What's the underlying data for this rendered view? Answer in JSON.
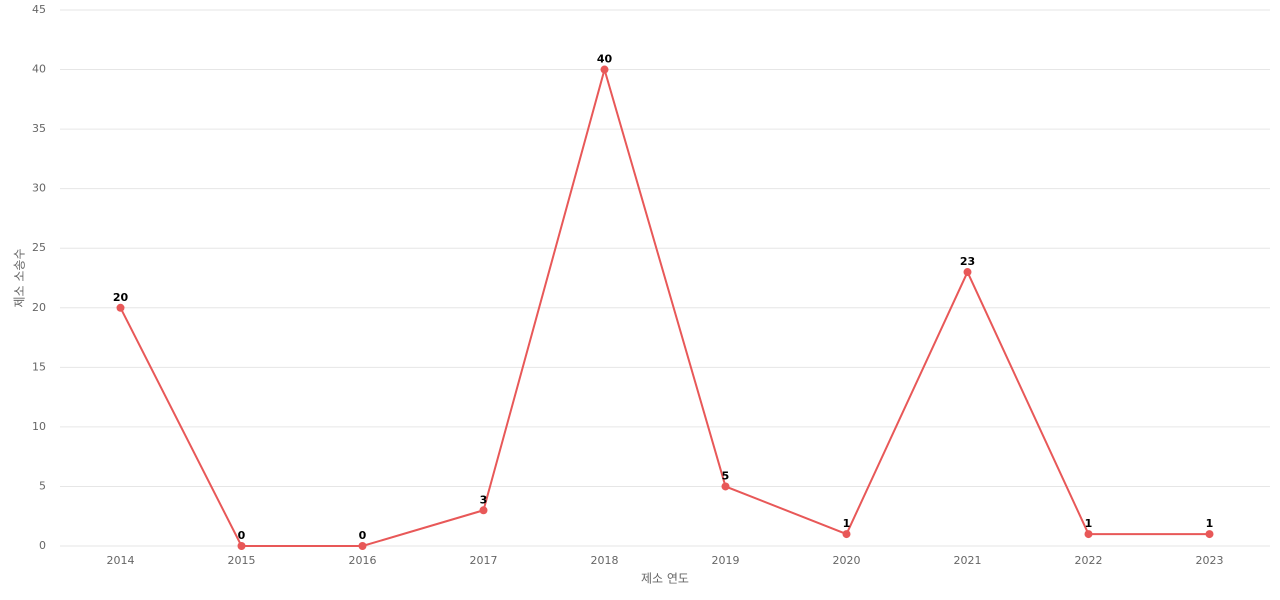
{
  "chart_data": {
    "type": "line",
    "xlabel": "제소 연도",
    "ylabel": "제소 소송수",
    "categories": [
      "2014",
      "2015",
      "2016",
      "2017",
      "2018",
      "2019",
      "2020",
      "2021",
      "2022",
      "2023"
    ],
    "values": [
      20,
      0,
      0,
      3,
      40,
      5,
      1,
      23,
      1,
      1
    ],
    "color": "#e85858",
    "ylim": [
      0,
      45
    ],
    "yticks": [
      0,
      5,
      10,
      15,
      20,
      25,
      30,
      35,
      40,
      45
    ],
    "grid": true
  }
}
